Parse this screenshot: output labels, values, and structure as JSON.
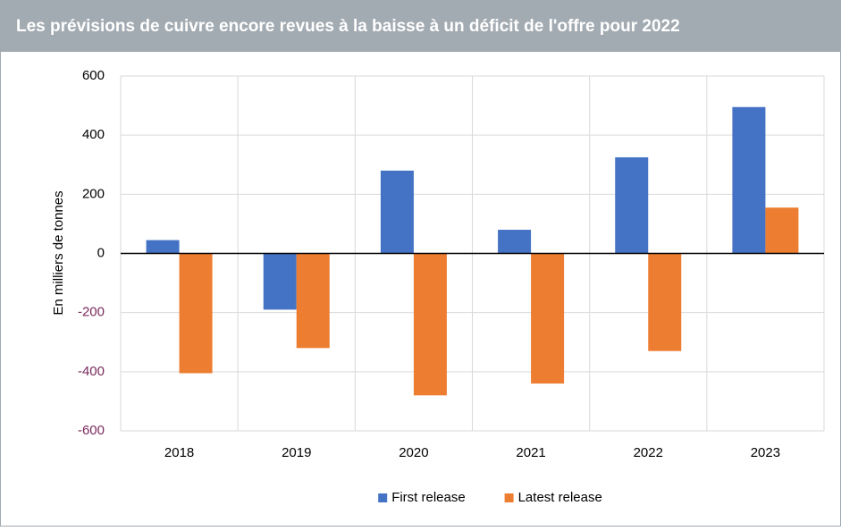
{
  "chart_data": {
    "type": "bar",
    "title": "Les prévisions de cuivre encore revues à la baisse à un déficit de l'offre pour 2022",
    "y_label": "En milliers de tonnes",
    "categories": [
      "2018",
      "2019",
      "2020",
      "2021",
      "2022",
      "2023"
    ],
    "series": [
      {
        "name": "First release",
        "color": "#4472c4",
        "values": [
          45,
          -190,
          280,
          80,
          325,
          495
        ]
      },
      {
        "name": "Latest release",
        "color": "#ed7d31",
        "values": [
          -405,
          -320,
          -480,
          -440,
          -330,
          155
        ]
      }
    ],
    "ylim": [
      -600,
      600
    ],
    "yticks": [
      -600,
      -400,
      -200,
      0,
      200,
      400,
      600
    ],
    "grid": true,
    "legend": "bottom"
  }
}
